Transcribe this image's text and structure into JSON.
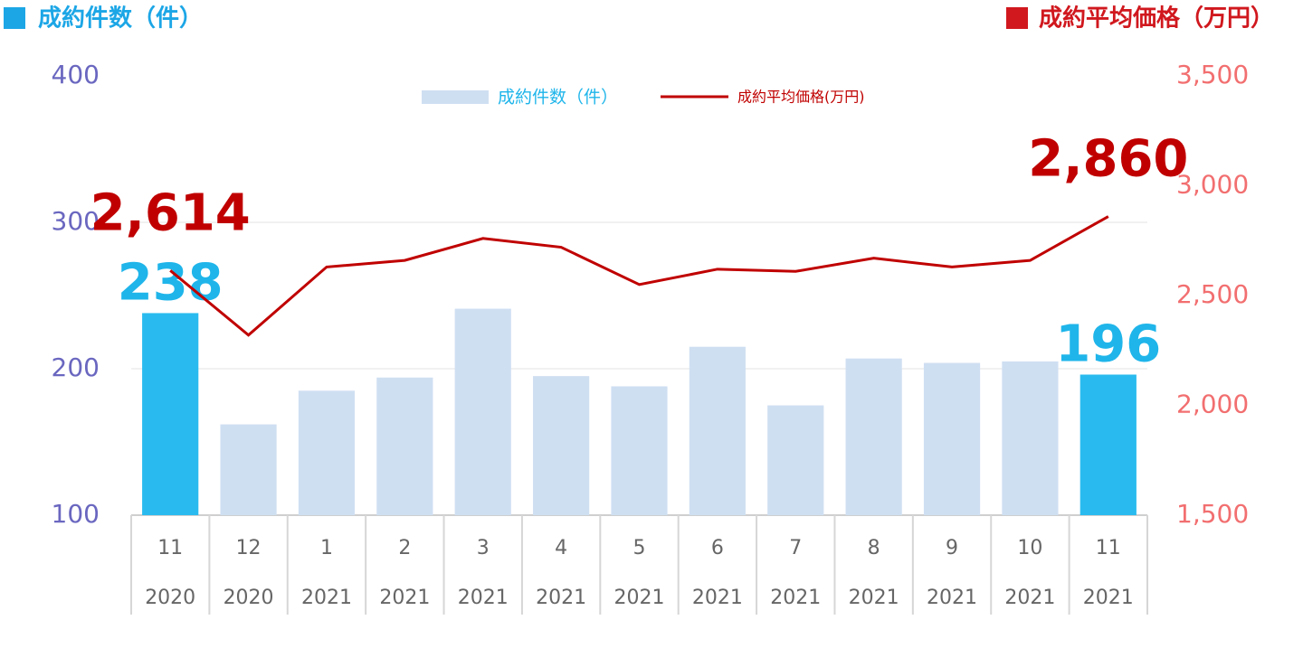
{
  "chart_data": {
    "type": "bar-line",
    "y_label": "成約件数（件）",
    "y2_label": "成約平均価格（万円）",
    "categories": [
      "11",
      "12",
      "1",
      "2",
      "3",
      "4",
      "5",
      "6",
      "7",
      "8",
      "9",
      "10",
      "11"
    ],
    "years": [
      "2020",
      "2020",
      "2021",
      "2021",
      "2021",
      "2021",
      "2021",
      "2021",
      "2021",
      "2021",
      "2021",
      "2021",
      "2021"
    ],
    "ylim": [
      100,
      400
    ],
    "yticks": [
      100,
      200,
      300,
      400
    ],
    "y2lim": [
      1500,
      3500
    ],
    "y2ticks": [
      {
        "value": 1500,
        "label": "1,500"
      },
      {
        "value": 2000,
        "label": "2,000"
      },
      {
        "value": 2500,
        "label": "2,500"
      },
      {
        "value": 3000,
        "label": "3,000"
      },
      {
        "value": 3500,
        "label": "3,500"
      }
    ],
    "grid": true,
    "legend": "top",
    "series": [
      {
        "name": "成約件数（件）",
        "type": "bar",
        "color": "#cfdff2",
        "colors": [
          "#29bbef",
          "#cfdff2",
          "#cfdff2",
          "#cfdff2",
          "#cfdff2",
          "#cfdff2",
          "#cfdff2",
          "#cfdff2",
          "#cfdff2",
          "#cfdff2",
          "#cfdff2",
          "#cfdff2",
          "#29bbef"
        ],
        "values": [
          238,
          162,
          185,
          194,
          241,
          195,
          188,
          215,
          175,
          207,
          204,
          205,
          196
        ],
        "value_labels": [
          "238",
          null,
          null,
          null,
          null,
          null,
          null,
          null,
          null,
          null,
          null,
          null,
          "196"
        ]
      },
      {
        "name": "成約平均価格(万円)",
        "type": "line",
        "axis": "y2",
        "color": "#c00000",
        "values": [
          2614,
          2320,
          2630,
          2660,
          2760,
          2720,
          2550,
          2620,
          2610,
          2670,
          2630,
          2660,
          2860
        ],
        "value_labels": [
          "2,614",
          null,
          null,
          null,
          null,
          null,
          null,
          null,
          null,
          null,
          null,
          null,
          "2,860"
        ]
      }
    ]
  }
}
